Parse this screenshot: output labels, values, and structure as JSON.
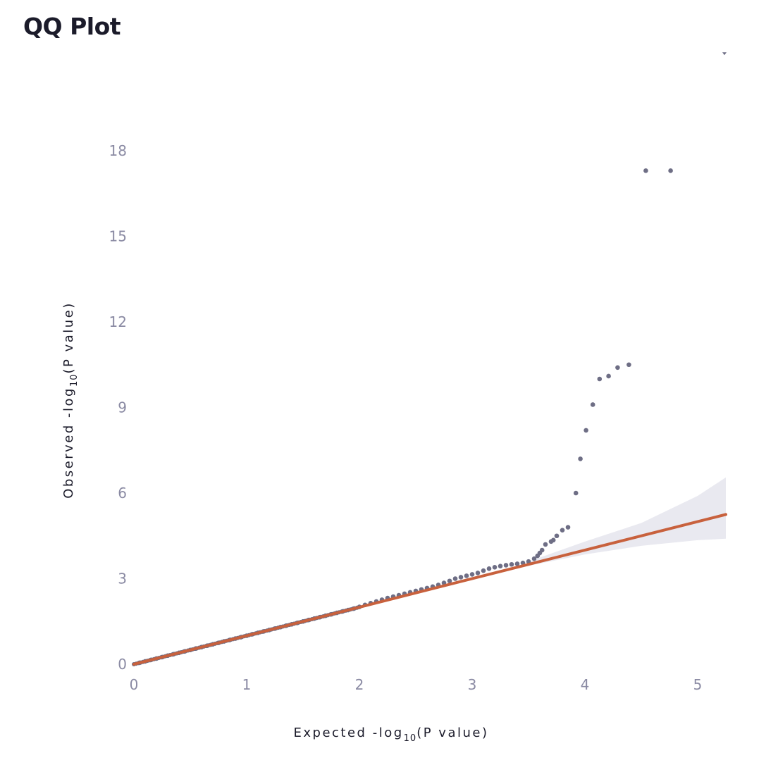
{
  "page": {
    "title": "QQ Plot"
  },
  "chart_data": {
    "type": "scatter",
    "title": "QQ Plot",
    "xlabel": {
      "prefix": "Expected -log",
      "sub": "10",
      "suffix": "(P value)"
    },
    "ylabel": {
      "prefix": "Observed -log",
      "sub": "10",
      "suffix": "(P value)"
    },
    "xlim": [
      0,
      5.25
    ],
    "ylim": [
      0,
      21.5
    ],
    "x_ticks": [
      "0",
      "1",
      "2",
      "3",
      "4",
      "5"
    ],
    "y_ticks": [
      "0",
      "3",
      "6",
      "9",
      "12",
      "15",
      "18"
    ],
    "grid": false,
    "legend": "none",
    "colors": {
      "points": "#6e6e85",
      "line": "#c8613d",
      "band": "#e9e9f0"
    },
    "reference_line": {
      "x": [
        0,
        5.25
      ],
      "y": [
        0,
        5.25
      ]
    },
    "confidence_band": {
      "x": [
        3.5,
        4.0,
        4.5,
        5.0,
        5.25
      ],
      "lower": [
        3.45,
        3.85,
        4.15,
        4.35,
        4.4
      ],
      "upper": [
        3.6,
        4.3,
        4.95,
        5.9,
        6.55
      ]
    },
    "series": [
      {
        "values_x": [
          0.05,
          0.1,
          0.15,
          0.2,
          0.25,
          0.3,
          0.35,
          0.4,
          0.45,
          0.5,
          0.55,
          0.6,
          0.65,
          0.7,
          0.75,
          0.8,
          0.85,
          0.9,
          0.95,
          1.0,
          1.05,
          1.1,
          1.15,
          1.2,
          1.25,
          1.3,
          1.35,
          1.4,
          1.45,
          1.5,
          1.55,
          1.6,
          1.65,
          1.7,
          1.75,
          1.8,
          1.85,
          1.9,
          1.95,
          2.0,
          2.05,
          2.1,
          2.15,
          2.2,
          2.25,
          2.3,
          2.35,
          2.4,
          2.45,
          2.5,
          2.55,
          2.6,
          2.65,
          2.7,
          2.75,
          2.8,
          2.85,
          2.9,
          2.95,
          3.0,
          3.05,
          3.1,
          3.15,
          3.2,
          3.25,
          3.3,
          3.35,
          3.4,
          3.45,
          3.5,
          3.55,
          3.58,
          3.6,
          3.62,
          3.65,
          3.7,
          3.72,
          3.75,
          3.8,
          3.85,
          3.92,
          3.96,
          4.01,
          4.07,
          4.13,
          4.21,
          4.29,
          4.39,
          4.54,
          4.76
        ],
        "values_y": [
          0.05,
          0.1,
          0.15,
          0.2,
          0.25,
          0.3,
          0.35,
          0.4,
          0.45,
          0.5,
          0.55,
          0.6,
          0.65,
          0.7,
          0.75,
          0.8,
          0.85,
          0.9,
          0.95,
          1.0,
          1.05,
          1.1,
          1.15,
          1.2,
          1.25,
          1.3,
          1.35,
          1.4,
          1.45,
          1.5,
          1.55,
          1.6,
          1.65,
          1.7,
          1.75,
          1.8,
          1.85,
          1.9,
          1.95,
          2.01,
          2.08,
          2.14,
          2.2,
          2.26,
          2.32,
          2.37,
          2.42,
          2.47,
          2.52,
          2.57,
          2.62,
          2.67,
          2.72,
          2.78,
          2.85,
          2.92,
          3.0,
          3.05,
          3.1,
          3.15,
          3.2,
          3.28,
          3.35,
          3.4,
          3.44,
          3.47,
          3.5,
          3.52,
          3.55,
          3.6,
          3.7,
          3.8,
          3.9,
          4.0,
          4.2,
          4.3,
          4.35,
          4.5,
          4.7,
          4.8,
          6.0,
          7.2,
          8.2,
          9.1,
          10.0,
          10.1,
          10.4,
          10.5,
          17.3,
          17.3
        ]
      }
    ],
    "offscale_points": [
      {
        "x": 5.25,
        "y": 21.5
      }
    ]
  }
}
